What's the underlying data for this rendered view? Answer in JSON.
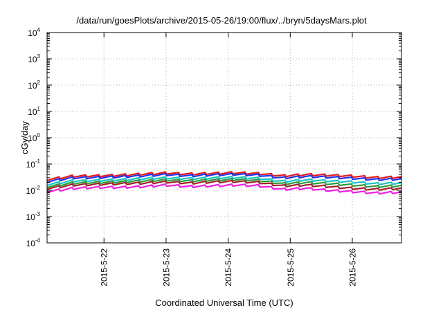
{
  "chart_data": {
    "type": "line",
    "title": "/data/run/goesPlots/archive/2015-05-26/19:00/flux/../bryn/5daysMars.plot",
    "xlabel": "Coordinated Universal Time (UTC)",
    "ylabel": "cGy/day",
    "x_range": [
      "2015-05-21 02:00",
      "2015-05-26 19:00"
    ],
    "x_tick_labels": [
      "2015-5-22",
      "2015-5-23",
      "2015-5-24",
      "2015-5-25",
      "2015-5-26"
    ],
    "y_scale": "log",
    "ylim": [
      0.0001,
      10000
    ],
    "y_tick_labels": [
      {
        "base": "10",
        "exp": "4"
      },
      {
        "base": "10",
        "exp": "3"
      },
      {
        "base": "10",
        "exp": "2"
      },
      {
        "base": "10",
        "exp": "1"
      },
      {
        "base": "10",
        "exp": "0"
      },
      {
        "base": "10",
        "exp": "-1"
      },
      {
        "base": "10",
        "exp": "-2"
      },
      {
        "base": "10",
        "exp": "-3"
      },
      {
        "base": "10",
        "exp": "-4"
      }
    ],
    "grid": true,
    "x": [
      "2015-05-21 02:00",
      "2015-05-21 12:00",
      "2015-05-21 21:00",
      "2015-05-22 06:00",
      "2015-05-22 15:00",
      "2015-05-23 00:00",
      "2015-05-23 09:00",
      "2015-05-23 18:00",
      "2015-05-24 03:00",
      "2015-05-24 12:00",
      "2015-05-24 21:00",
      "2015-05-25 06:00",
      "2015-05-25 15:00",
      "2015-05-26 00:00",
      "2015-05-26 09:00",
      "2015-05-26 19:00"
    ],
    "series": [
      {
        "color": "#e41a1c",
        "values": [
          0.026,
          0.035,
          0.036,
          0.038,
          0.042,
          0.046,
          0.042,
          0.045,
          0.047,
          0.044,
          0.036,
          0.04,
          0.038,
          0.035,
          0.031,
          0.032
        ]
      },
      {
        "color": "#2233ee",
        "values": [
          0.022,
          0.03,
          0.031,
          0.033,
          0.036,
          0.04,
          0.036,
          0.039,
          0.041,
          0.038,
          0.03,
          0.034,
          0.032,
          0.029,
          0.026,
          0.027
        ]
      },
      {
        "color": "#19c4c4",
        "values": [
          0.017,
          0.023,
          0.024,
          0.025,
          0.028,
          0.03,
          0.028,
          0.03,
          0.031,
          0.029,
          0.022,
          0.025,
          0.023,
          0.021,
          0.018,
          0.019
        ]
      },
      {
        "color": "#2e9b3e",
        "values": [
          0.014,
          0.019,
          0.02,
          0.021,
          0.023,
          0.025,
          0.023,
          0.025,
          0.026,
          0.024,
          0.018,
          0.02,
          0.018,
          0.016,
          0.014,
          0.015
        ]
      },
      {
        "color": "#a0202a",
        "values": [
          0.012,
          0.016,
          0.017,
          0.018,
          0.019,
          0.021,
          0.019,
          0.021,
          0.022,
          0.02,
          0.015,
          0.016,
          0.014,
          0.012,
          0.011,
          0.012
        ]
      },
      {
        "color": "#ee1ee6",
        "values": [
          0.009,
          0.012,
          0.013,
          0.013,
          0.014,
          0.016,
          0.014,
          0.015,
          0.016,
          0.015,
          0.011,
          0.012,
          0.01,
          0.009,
          0.008,
          0.0085
        ]
      }
    ]
  }
}
